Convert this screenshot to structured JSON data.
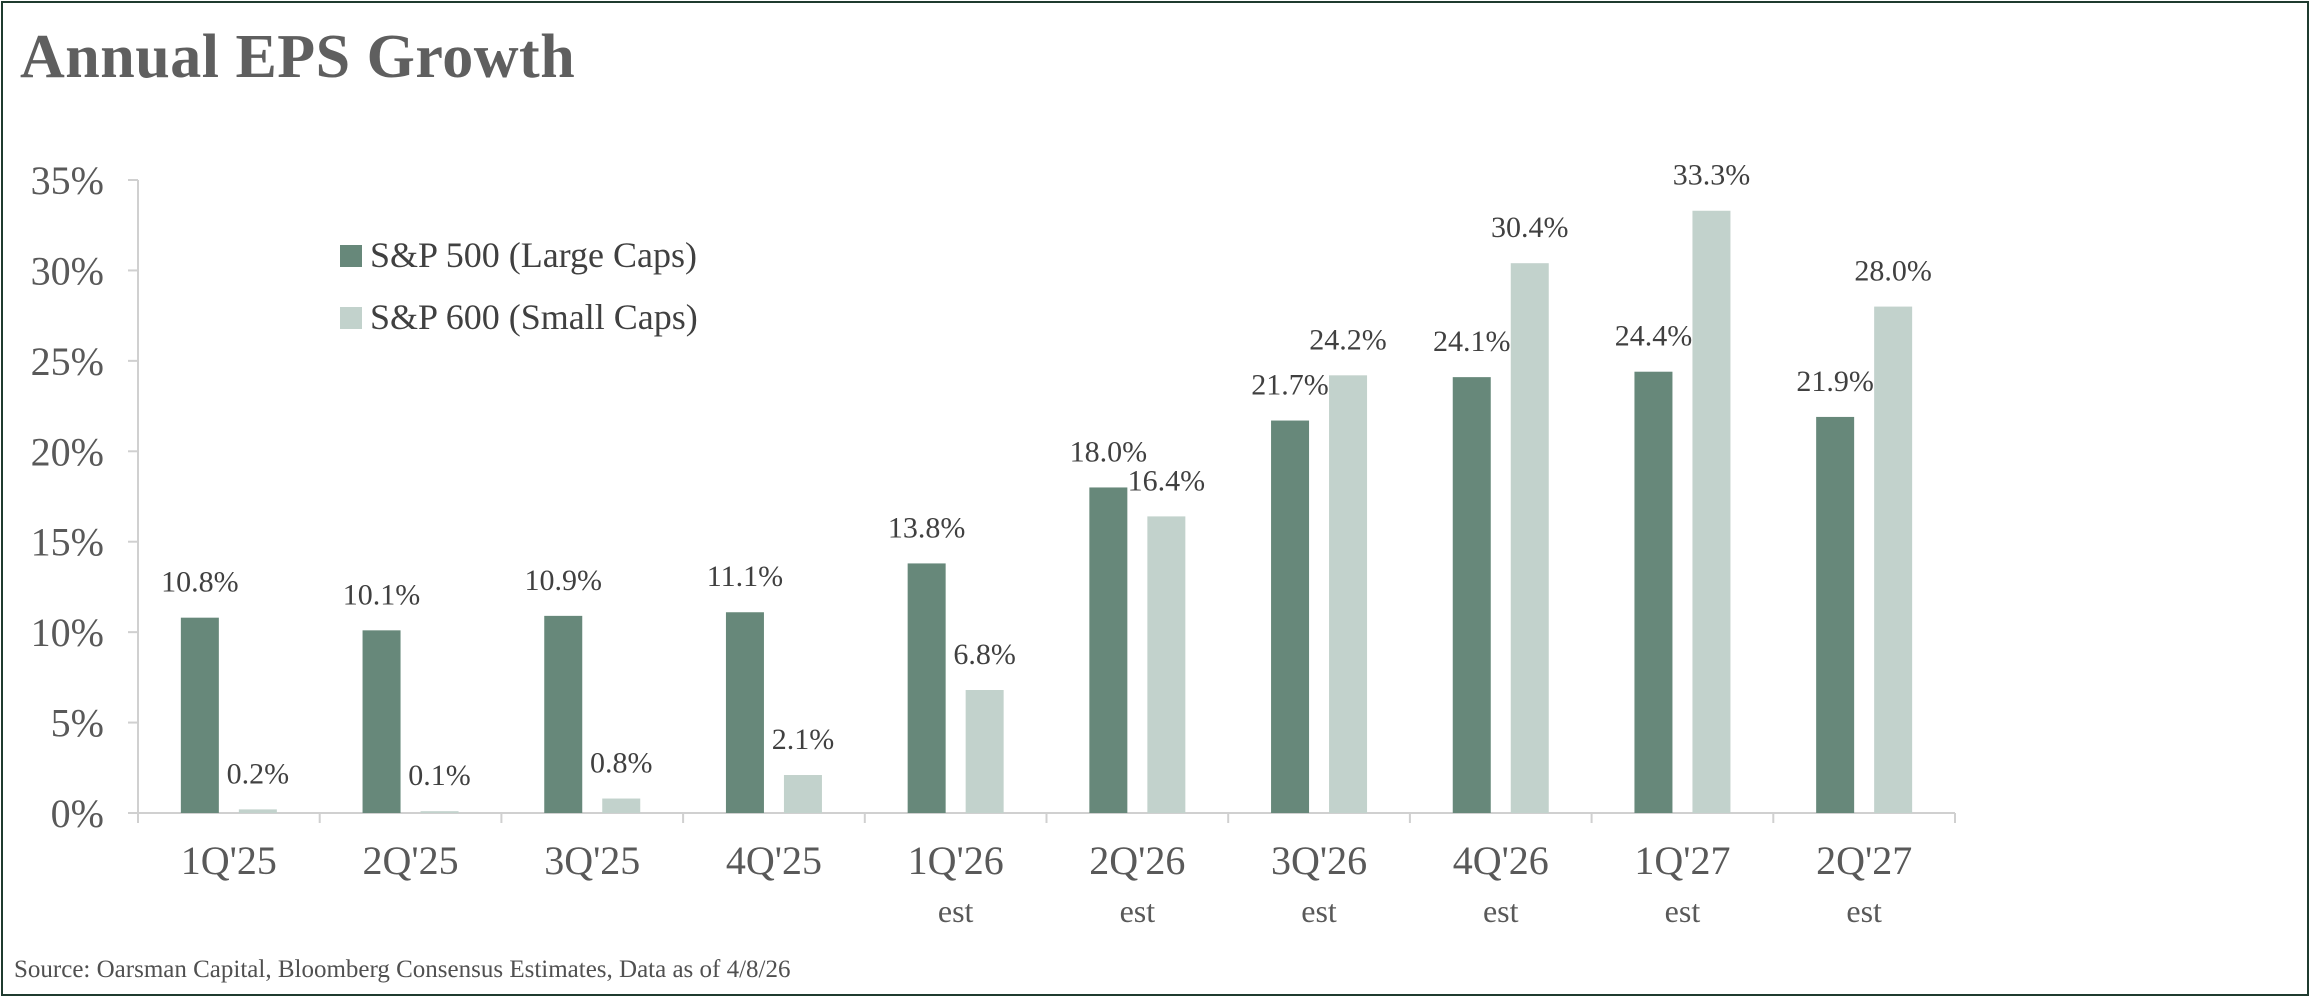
{
  "title": "Annual EPS Growth",
  "source": "Source: Oarsman Capital, Bloomberg Consensus Estimates, Data as of 4/8/26",
  "colors": {
    "large": "#67887a",
    "small": "#c2d2cc",
    "axis": "#d0d0d0",
    "text": "#595959"
  },
  "chart_data": {
    "type": "bar",
    "title": "Annual EPS Growth",
    "xlabel": "",
    "ylabel": "",
    "ylim": [
      0,
      35
    ],
    "yticks": [
      "0%",
      "5%",
      "10%",
      "15%",
      "20%",
      "25%",
      "30%",
      "35%"
    ],
    "categories": [
      "1Q'25",
      "2Q'25",
      "3Q'25",
      "4Q'25",
      "1Q'26",
      "2Q'26",
      "3Q'26",
      "4Q'26",
      "1Q'27",
      "2Q'27"
    ],
    "category_sublabels": [
      "",
      "",
      "",
      "",
      "est",
      "est",
      "est",
      "est",
      "est",
      "est"
    ],
    "series": [
      {
        "name": "S&P 500 (Large Caps)",
        "values": [
          10.8,
          10.1,
          10.9,
          11.1,
          13.8,
          18.0,
          21.7,
          24.1,
          24.4,
          21.9
        ],
        "labels": [
          "10.8%",
          "10.1%",
          "10.9%",
          "11.1%",
          "13.8%",
          "18.0%",
          "21.7%",
          "24.1%",
          "24.4%",
          "21.9%"
        ]
      },
      {
        "name": "S&P 600 (Small Caps)",
        "values": [
          0.2,
          0.1,
          0.8,
          2.1,
          6.8,
          16.4,
          24.2,
          30.4,
          33.3,
          28.0
        ],
        "labels": [
          "0.2%",
          "0.1%",
          "0.8%",
          "2.1%",
          "6.8%",
          "16.4%",
          "24.2%",
          "30.4%",
          "33.3%",
          "28.0%"
        ]
      }
    ],
    "legend": "top-left",
    "grid": false
  }
}
